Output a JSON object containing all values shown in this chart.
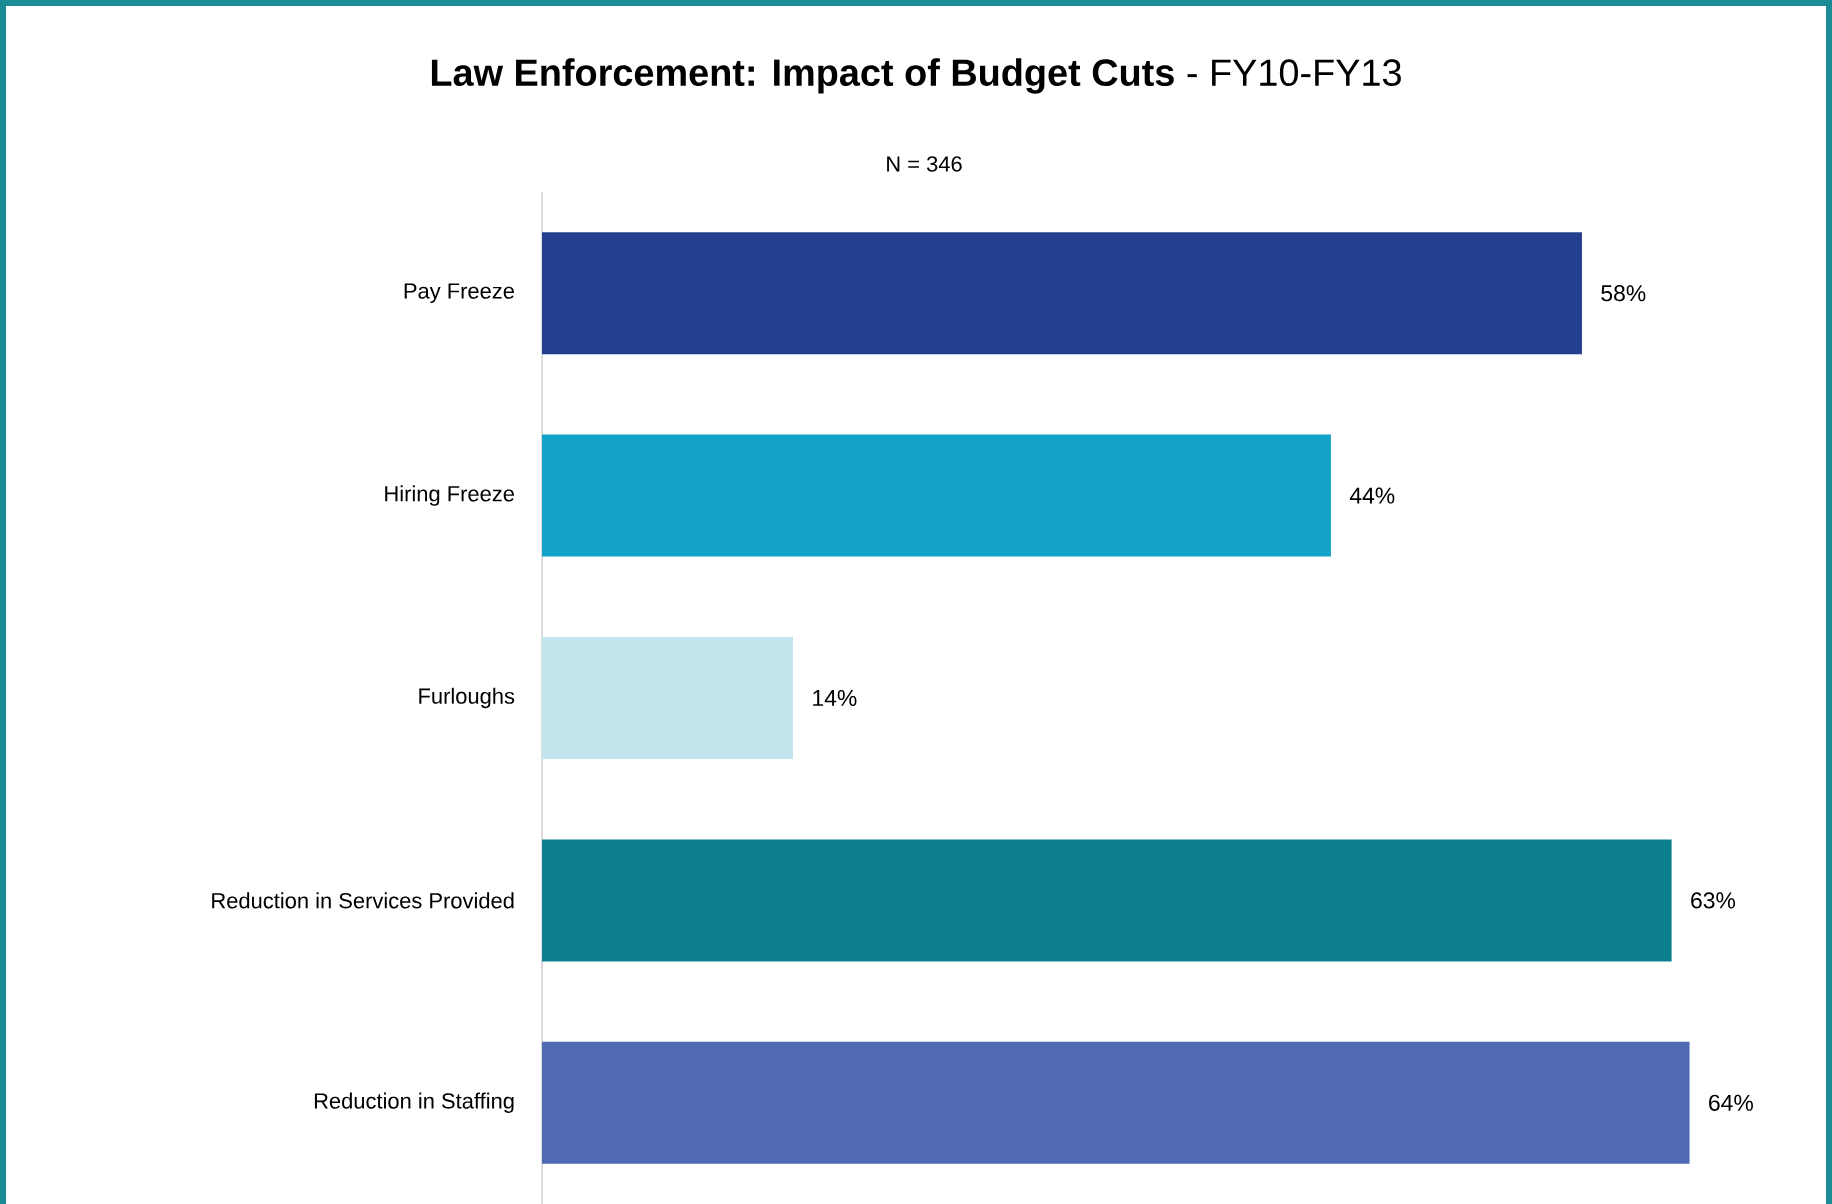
{
  "chart_data": {
    "type": "bar",
    "orientation": "horizontal",
    "title": "**Law Enforcement: Impact of Budget Cuts** - FY10-FY13",
    "annotations": [
      "N = 346"
    ],
    "categories": [
      "Pay Freeze",
      "Hiring Freeze",
      "Furloughs",
      "Reduction in Services Provided",
      "Reduction in Staffing"
    ],
    "values": [
      58,
      44,
      14,
      63,
      64
    ],
    "value_labels": [
      "58%",
      "44%",
      "14%",
      "63%",
      "64%"
    ],
    "colors": [
      "#253f8f",
      "#13a3c9",
      "#c1e6ee",
      "#0e7f8d",
      "#4f6ab3"
    ]
  }
}
